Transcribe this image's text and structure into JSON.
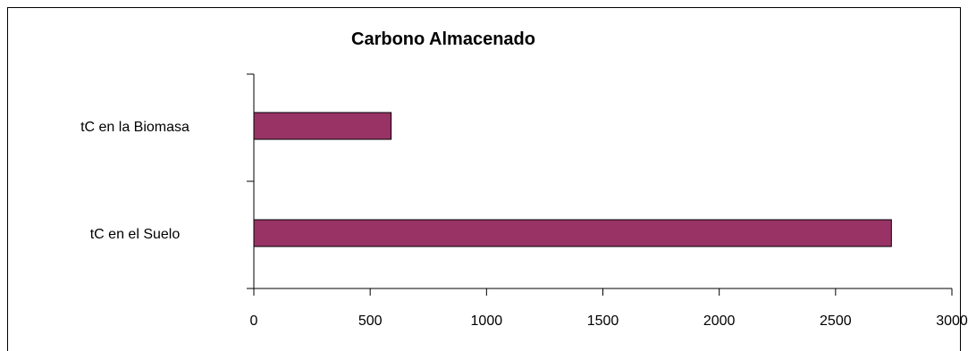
{
  "chart_data": {
    "type": "bar",
    "orientation": "horizontal",
    "title": "Carbono Almacenado",
    "xlabel": "",
    "ylabel": "",
    "categories": [
      "tC en la Biomasa",
      "tC en el Suelo"
    ],
    "values": [
      590,
      2740
    ],
    "xlim": [
      0,
      3000
    ],
    "x_ticks": [
      "0",
      "500",
      "1000",
      "1500",
      "2000",
      "2500",
      "3000"
    ],
    "grid": false,
    "legend": "none",
    "bar_color": "#993366"
  }
}
